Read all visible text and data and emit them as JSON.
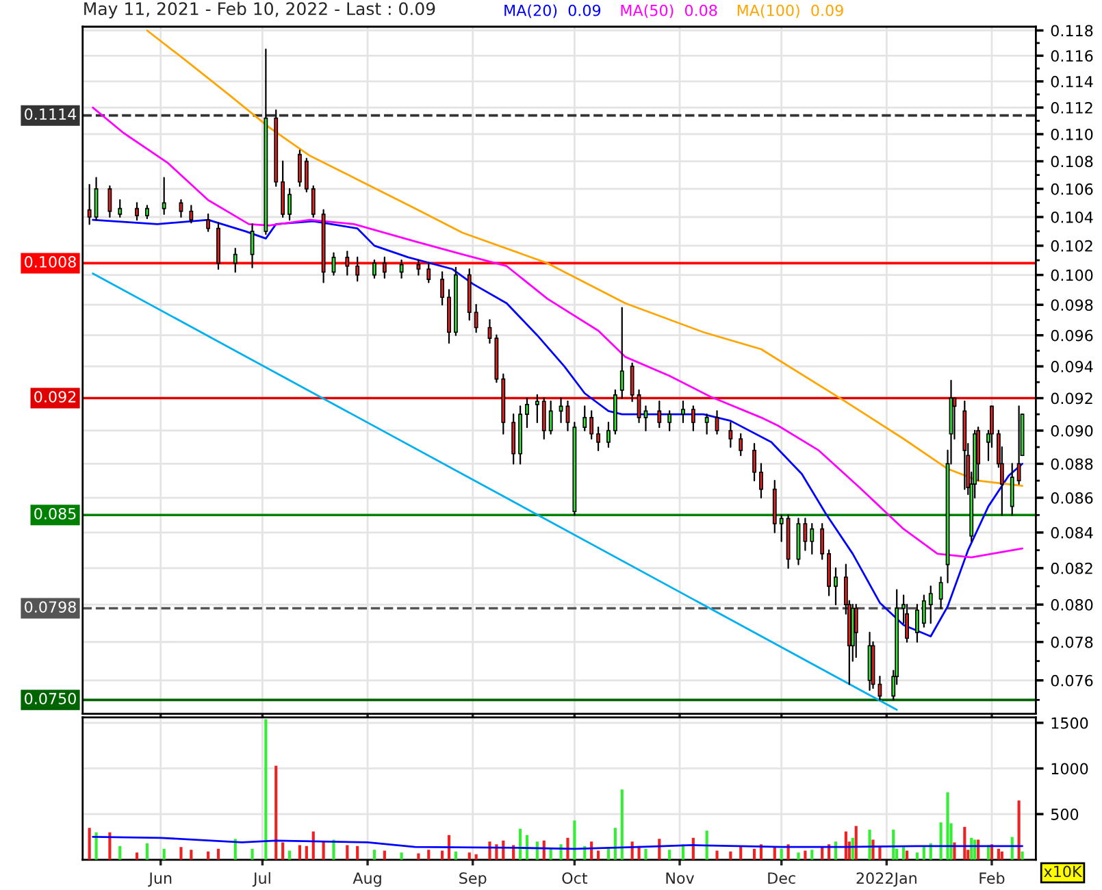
{
  "chart_data": [
    {
      "type": "candlestick",
      "title": "May 11, 2021 - Feb 10, 2022 - Last : 0.09",
      "log": "y",
      "grid": true,
      "legend": "top",
      "tick_labels": "y",
      "xlim": [
        "2021-05-09",
        "2022-02-14"
      ],
      "xticks": [
        {
          "value": "2021-06-01",
          "label": null
        },
        {
          "value": "2021-07-01",
          "label": null
        },
        {
          "value": "2021-08-01",
          "label": null
        },
        {
          "value": "2021-09-01",
          "label": null
        },
        {
          "value": "2021-10-01",
          "label": null
        },
        {
          "value": "2021-11-01",
          "label": null
        },
        {
          "value": "2021-12-01",
          "label": null
        },
        {
          "value": "2022-01-01",
          "label": null
        },
        {
          "value": "2022-02-01",
          "label": null
        }
      ],
      "ylim": [
        0.0743,
        0.1183
      ],
      "yticks": [
        {
          "value": 0.075,
          "label": null
        },
        0.076,
        {
          "value": 0.077,
          "label": null
        },
        0.078,
        {
          "value": 0.079,
          "label": null
        },
        {
          "value": 0.08,
          "label": "0.080"
        },
        {
          "value": 0.081,
          "label": null
        },
        0.082,
        {
          "value": 0.083,
          "label": null
        },
        0.084,
        {
          "value": 0.085,
          "label": null
        },
        0.086,
        {
          "value": 0.087,
          "label": null
        },
        0.088,
        {
          "value": 0.089,
          "label": null
        },
        {
          "value": 0.09,
          "label": "0.090"
        },
        {
          "value": 0.091,
          "label": null
        },
        0.092,
        {
          "value": 0.093,
          "label": null
        },
        0.094,
        {
          "value": 0.095,
          "label": null
        },
        0.096,
        {
          "value": 0.097,
          "label": null
        },
        0.098,
        {
          "value": 0.099,
          "label": null
        },
        {
          "value": 0.1,
          "label": "0.100"
        },
        {
          "value": 0.101,
          "label": null
        },
        0.102,
        {
          "value": 0.103,
          "label": null
        },
        0.104,
        {
          "value": 0.105,
          "label": null
        },
        0.106,
        {
          "value": 0.107,
          "label": null
        },
        0.108,
        {
          "value": 0.109,
          "label": null
        },
        {
          "value": 0.11,
          "label": "0.110"
        },
        {
          "value": 0.111,
          "label": null
        },
        0.112,
        {
          "value": 0.113,
          "label": null
        },
        0.114,
        {
          "value": 0.115,
          "label": null
        },
        0.116,
        {
          "value": 0.117,
          "label": null
        },
        0.118
      ],
      "ref_lines": [
        {
          "axis": "y",
          "value": 0.1114,
          "label": "0.1114",
          "color": "#333333",
          "line_style": "dashed"
        },
        {
          "axis": "y",
          "value": 0.1008,
          "label": "0.1008",
          "color": "#ff0000",
          "line_style": "solid"
        },
        {
          "axis": "y",
          "value": 0.092,
          "label": "0.092",
          "color": "#e00000",
          "line_style": "solid"
        },
        {
          "axis": "y",
          "value": 0.085,
          "label": "0.085",
          "color": "#008000",
          "line_style": "solid"
        },
        {
          "axis": "y",
          "value": 0.0798,
          "label": "0.0798",
          "color": "#555555",
          "line_style": "dashed"
        },
        {
          "axis": "y",
          "value": 0.075,
          "label": "0.0750",
          "color": "#006400",
          "line_style": "solid"
        }
      ],
      "series": [
        {
          "type": "line",
          "color": "#00b0f0",
          "x": [
            "2021-05-12",
            "2022-01-04"
          ],
          "values": [
            0.1001,
            0.0745
          ]
        },
        {
          "type": "line",
          "name": "MA(20)  0.09",
          "color": "#0000ff",
          "x": [
            "2021-05-12",
            "2021-05-31",
            "2021-06-15",
            "2021-06-26",
            "2021-07-02",
            "2021-07-05",
            "2021-07-16",
            "2021-07-29",
            "2021-08-03",
            "2021-08-13",
            "2021-08-26",
            "2021-09-01",
            "2021-09-11",
            "2021-09-20",
            "2021-09-28",
            "2021-10-04",
            "2021-10-11",
            "2021-10-15",
            "2021-10-20",
            "2021-11-08",
            "2021-11-16",
            "2021-11-28",
            "2021-12-07",
            "2021-12-14",
            "2021-12-22",
            "2021-12-30",
            "2022-01-06",
            "2022-01-14",
            "2022-01-19",
            "2022-01-25",
            "2022-01-31",
            "2022-02-06",
            "2022-02-10"
          ],
          "values": [
            0.1038,
            0.1035,
            0.1038,
            0.103,
            0.1025,
            0.1035,
            0.1037,
            0.1032,
            0.102,
            0.1012,
            0.1004,
            0.0994,
            0.0981,
            0.096,
            0.094,
            0.0923,
            0.0912,
            0.091,
            0.091,
            0.091,
            0.0906,
            0.0893,
            0.0874,
            0.0851,
            0.0828,
            0.0801,
            0.0789,
            0.0783,
            0.0799,
            0.083,
            0.0855,
            0.0873,
            0.088
          ]
        },
        {
          "type": "line",
          "name": "MA(50)  0.08",
          "color": "#ff00ff",
          "x": [
            "2021-05-12",
            "2021-05-21",
            "2021-06-03",
            "2021-06-15",
            "2021-06-27",
            "2021-07-03",
            "2021-07-15",
            "2021-07-28",
            "2021-08-15",
            "2021-08-29",
            "2021-09-11",
            "2021-09-23",
            "2021-10-08",
            "2021-10-16",
            "2021-10-29",
            "2021-11-10",
            "2021-11-25",
            "2021-11-30",
            "2021-12-12",
            "2021-12-24",
            "2022-01-06",
            "2022-01-16",
            "2022-01-26",
            "2022-02-10"
          ],
          "values": [
            0.112,
            0.1101,
            0.1079,
            0.1052,
            0.1035,
            0.1034,
            0.1038,
            0.1035,
            0.1023,
            0.1014,
            0.1006,
            0.0984,
            0.0963,
            0.0946,
            0.0934,
            0.0921,
            0.0908,
            0.0903,
            0.0888,
            0.0866,
            0.0842,
            0.0828,
            0.0826,
            0.0831
          ]
        },
        {
          "type": "line",
          "name": "MA(100)  0.09",
          "color": "#ffa500",
          "x": [
            "2021-05-28",
            "2021-06-09",
            "2021-06-21",
            "2021-07-03",
            "2021-07-15",
            "2021-07-28",
            "2021-08-15",
            "2021-08-29",
            "2021-09-23",
            "2021-10-16",
            "2021-11-08",
            "2021-11-25",
            "2021-12-19",
            "2022-01-06",
            "2022-01-19",
            "2022-01-28",
            "2022-02-10"
          ],
          "values": [
            0.118,
            0.1155,
            0.113,
            0.1105,
            0.1084,
            0.1068,
            0.1046,
            0.1029,
            0.1008,
            0.0981,
            0.0962,
            0.0951,
            0.0919,
            0.0895,
            0.0877,
            0.087,
            0.0867
          ]
        },
        {
          "type": "candlestick",
          "color": "#33ee33",
          "x": [
            "2021-05-13",
            "2021-05-20",
            "2021-05-28",
            "2021-06-02",
            "2021-06-23",
            "2021-06-28",
            "2021-07-02",
            "2021-07-09",
            "2021-07-22",
            "2021-08-03",
            "2021-08-11",
            "2021-08-27",
            "2021-09-15",
            "2021-09-17",
            "2021-09-20",
            "2021-09-24",
            "2021-09-27",
            "2021-10-01",
            "2021-10-04",
            "2021-10-11",
            "2021-10-13",
            "2021-10-15",
            "2021-10-22",
            "2021-10-29",
            "2021-11-02",
            "2021-11-09",
            "2021-12-01",
            "2021-12-06",
            "2021-12-10",
            "2021-12-17",
            "2021-12-22",
            "2021-12-27",
            "2022-01-03",
            "2022-01-04",
            "2022-01-06",
            "2022-01-10",
            "2022-01-12",
            "2022-01-14",
            "2022-01-17",
            "2022-01-19",
            "2022-01-20",
            "2022-01-26",
            "2022-01-27",
            "2022-01-31",
            "2022-02-07",
            "2022-02-10"
          ],
          "ohlc": [
            [
              0.104,
              0.1068,
              0.1038,
              0.106
            ],
            [
              0.1042,
              0.1052,
              0.104,
              0.1046
            ],
            [
              0.1041,
              0.1048,
              0.1039,
              0.1046
            ],
            [
              0.1046,
              0.1068,
              0.1042,
              0.105
            ],
            [
              0.1008,
              0.1018,
              0.1002,
              0.1014
            ],
            [
              0.1014,
              0.1035,
              0.1005,
              0.103
            ],
            [
              0.103,
              0.1165,
              0.1028,
              0.1112
            ],
            [
              0.1042,
              0.106,
              0.1038,
              0.1056
            ],
            [
              0.1002,
              0.1015,
              0.1,
              0.1012
            ],
            [
              0.1,
              0.101,
              0.0998,
              0.1008
            ],
            [
              0.1002,
              0.101,
              0.0998,
              0.1007
            ],
            [
              0.0962,
              0.1005,
              0.096,
              0.1
            ],
            [
              0.0886,
              0.0915,
              0.088,
              0.091
            ],
            [
              0.091,
              0.092,
              0.0902,
              0.0916
            ],
            [
              0.0916,
              0.0922,
              0.0905,
              0.0918
            ],
            [
              0.09,
              0.0918,
              0.0898,
              0.0912
            ],
            [
              0.0912,
              0.092,
              0.0905,
              0.0915
            ],
            [
              0.0852,
              0.0905,
              0.085,
              0.0902
            ],
            [
              0.0902,
              0.0915,
              0.09,
              0.0908
            ],
            [
              0.0893,
              0.0905,
              0.089,
              0.09
            ],
            [
              0.09,
              0.0925,
              0.0898,
              0.0922
            ],
            [
              0.0925,
              0.0978,
              0.092,
              0.0937
            ],
            [
              0.0908,
              0.0915,
              0.09,
              0.0912
            ],
            [
              0.0905,
              0.0912,
              0.09,
              0.091
            ],
            [
              0.091,
              0.0918,
              0.0905,
              0.0913
            ],
            [
              0.0905,
              0.091,
              0.0898,
              0.0908
            ],
            [
              0.0845,
              0.085,
              0.0835,
              0.0848
            ],
            [
              0.0825,
              0.0848,
              0.0822,
              0.0845
            ],
            [
              0.0835,
              0.0845,
              0.0828,
              0.0842
            ],
            [
              0.081,
              0.082,
              0.08,
              0.0815
            ],
            [
              0.0778,
              0.08,
              0.077,
              0.0798
            ],
            [
              0.076,
              0.0785,
              0.0755,
              0.0778
            ],
            [
              0.0752,
              0.0765,
              0.075,
              0.0762
            ],
            [
              0.0762,
              0.0808,
              0.0758,
              0.0798
            ],
            [
              0.0798,
              0.0805,
              0.079,
              0.08
            ],
            [
              0.0785,
              0.08,
              0.078,
              0.0797
            ],
            [
              0.079,
              0.0805,
              0.0788,
              0.0802
            ],
            [
              0.08,
              0.081,
              0.079,
              0.0806
            ],
            [
              0.0803,
              0.0815,
              0.0798,
              0.0812
            ],
            [
              0.0822,
              0.0888,
              0.0812,
              0.088
            ],
            [
              0.0898,
              0.0931,
              0.088,
              0.092
            ],
            [
              0.0838,
              0.0875,
              0.0835,
              0.0868
            ],
            [
              0.0868,
              0.09,
              0.086,
              0.0898
            ],
            [
              0.0893,
              0.09,
              0.0882,
              0.0898
            ],
            [
              0.0855,
              0.088,
              0.085,
              0.0872
            ],
            [
              0.0885,
              0.091,
              0.0885,
              0.091
            ]
          ]
        },
        {
          "type": "candlestick",
          "color": "#ee2222",
          "x": [
            "2021-05-11",
            "2021-05-17",
            "2021-05-25",
            "2021-06-07",
            "2021-06-10",
            "2021-06-15",
            "2021-06-18",
            "2021-07-05",
            "2021-07-07",
            "2021-07-12",
            "2021-07-14",
            "2021-07-16",
            "2021-07-19",
            "2021-07-26",
            "2021-07-29",
            "2021-08-06",
            "2021-08-16",
            "2021-08-19",
            "2021-08-23",
            "2021-08-25",
            "2021-08-31",
            "2021-09-02",
            "2021-09-06",
            "2021-09-08",
            "2021-09-10",
            "2021-09-13",
            "2021-09-22",
            "2021-09-29",
            "2021-10-06",
            "2021-10-08",
            "2021-10-18",
            "2021-10-20",
            "2021-10-26",
            "2021-11-05",
            "2021-11-12",
            "2021-11-16",
            "2021-11-19",
            "2021-11-23",
            "2021-11-25",
            "2021-11-29",
            "2021-12-03",
            "2021-12-08",
            "2021-12-13",
            "2021-12-15",
            "2021-12-20",
            "2021-12-21",
            "2021-12-23",
            "2021-12-28",
            "2021-12-30",
            "2022-01-07",
            "2022-01-21",
            "2022-01-24",
            "2022-01-25",
            "2022-01-28",
            "2022-02-01",
            "2022-02-03",
            "2022-02-04",
            "2022-02-09"
          ],
          "ohlc": [
            [
              0.1045,
              0.1063,
              0.1035,
              0.104
            ],
            [
              0.106,
              0.1062,
              0.104,
              0.1044
            ],
            [
              0.1046,
              0.105,
              0.1038,
              0.1041
            ],
            [
              0.105,
              0.1052,
              0.104,
              0.1044
            ],
            [
              0.1044,
              0.1048,
              0.1036,
              0.1038
            ],
            [
              0.1038,
              0.1042,
              0.103,
              0.1032
            ],
            [
              0.1032,
              0.1036,
              0.1004,
              0.1008
            ],
            [
              0.1112,
              0.1118,
              0.1062,
              0.1065
            ],
            [
              0.1065,
              0.108,
              0.104,
              0.1042
            ],
            [
              0.1085,
              0.1088,
              0.1062,
              0.1065
            ],
            [
              0.108,
              0.1082,
              0.1058,
              0.106
            ],
            [
              0.106,
              0.1062,
              0.104,
              0.1042
            ],
            [
              0.1042,
              0.1045,
              0.0995,
              0.1002
            ],
            [
              0.1012,
              0.1016,
              0.1,
              0.1006
            ],
            [
              0.1006,
              0.1012,
              0.0996,
              0.1
            ],
            [
              0.1008,
              0.1012,
              0.0998,
              0.1002
            ],
            [
              0.1007,
              0.101,
              0.1,
              0.1004
            ],
            [
              0.1004,
              0.1008,
              0.0995,
              0.0997
            ],
            [
              0.0997,
              0.1002,
              0.098,
              0.0985
            ],
            [
              0.0985,
              0.099,
              0.0955,
              0.0962
            ],
            [
              0.1,
              0.1004,
              0.097,
              0.0975
            ],
            [
              0.0975,
              0.098,
              0.0962,
              0.0965
            ],
            [
              0.0965,
              0.097,
              0.0955,
              0.0958
            ],
            [
              0.0958,
              0.096,
              0.093,
              0.0932
            ],
            [
              0.0932,
              0.0935,
              0.0898,
              0.0905
            ],
            [
              0.0905,
              0.091,
              0.088,
              0.0886
            ],
            [
              0.0918,
              0.092,
              0.0895,
              0.09
            ],
            [
              0.0915,
              0.0918,
              0.09,
              0.0905
            ],
            [
              0.0908,
              0.0912,
              0.0895,
              0.0898
            ],
            [
              0.0898,
              0.0902,
              0.0888,
              0.0893
            ],
            [
              0.094,
              0.0942,
              0.0918,
              0.0922
            ],
            [
              0.0922,
              0.0925,
              0.0905,
              0.0908
            ],
            [
              0.0912,
              0.0918,
              0.0902,
              0.0905
            ],
            [
              0.0913,
              0.0915,
              0.09,
              0.0905
            ],
            [
              0.0908,
              0.0912,
              0.0898,
              0.09
            ],
            [
              0.09,
              0.0905,
              0.089,
              0.0895
            ],
            [
              0.0895,
              0.0898,
              0.0885,
              0.0888
            ],
            [
              0.0888,
              0.0892,
              0.087,
              0.0875
            ],
            [
              0.0875,
              0.088,
              0.086,
              0.0865
            ],
            [
              0.0865,
              0.087,
              0.084,
              0.0845
            ],
            [
              0.0848,
              0.085,
              0.082,
              0.0825
            ],
            [
              0.0845,
              0.0848,
              0.083,
              0.0835
            ],
            [
              0.0842,
              0.0845,
              0.0825,
              0.0828
            ],
            [
              0.0828,
              0.083,
              0.0805,
              0.081
            ],
            [
              0.0815,
              0.0822,
              0.0795,
              0.08
            ],
            [
              0.08,
              0.0802,
              0.0758,
              0.0778
            ],
            [
              0.0798,
              0.08,
              0.0772,
              0.0785
            ],
            [
              0.0778,
              0.078,
              0.0756,
              0.0758
            ],
            [
              0.0758,
              0.0762,
              0.075,
              0.0752
            ],
            [
              0.0795,
              0.08,
              0.078,
              0.0782
            ],
            [
              0.092,
              0.092,
              0.0895,
              0.0915
            ],
            [
              0.0912,
              0.0918,
              0.0865,
              0.0888
            ],
            [
              0.0885,
              0.0892,
              0.0862,
              0.0866
            ],
            [
              0.09,
              0.0902,
              0.087,
              0.088
            ],
            [
              0.0915,
              0.0915,
              0.089,
              0.0898
            ],
            [
              0.0898,
              0.09,
              0.0878,
              0.088
            ],
            [
              0.088,
              0.089,
              0.085,
              0.0868
            ],
            [
              0.088,
              0.0915,
              0.0868,
              0.087
            ]
          ]
        }
      ]
    },
    {
      "type": "bar",
      "grid": true,
      "annotations": [
        "x10K"
      ],
      "xlim": [
        "2021-05-09",
        "2022-02-14"
      ],
      "xticks": [
        {
          "value": "2021-06-01",
          "label": "Jun"
        },
        {
          "value": "2021-07-01",
          "label": "Jul"
        },
        {
          "value": "2021-08-01",
          "label": "Aug"
        },
        {
          "value": "2021-09-01",
          "label": "Sep"
        },
        {
          "value": "2021-10-01",
          "label": "Oct"
        },
        {
          "value": "2021-11-01",
          "label": "Nov"
        },
        {
          "value": "2021-12-01",
          "label": "Dec"
        },
        {
          "value": "2022-01-01",
          "label": "2022Jan"
        },
        {
          "value": "2022-02-01",
          "label": "Feb"
        }
      ],
      "ylim": [
        0,
        1560
      ],
      "yticks": [
        500,
        1000,
        1500
      ],
      "series": [
        {
          "color": "#33ee33",
          "x": [
            "2021-05-13",
            "2021-05-20",
            "2021-05-28",
            "2021-06-02",
            "2021-06-23",
            "2021-06-28",
            "2021-07-02",
            "2021-07-09",
            "2021-07-22",
            "2021-08-03",
            "2021-08-11",
            "2021-08-27",
            "2021-09-15",
            "2021-09-17",
            "2021-09-20",
            "2021-09-24",
            "2021-09-27",
            "2021-10-01",
            "2021-10-04",
            "2021-10-11",
            "2021-10-13",
            "2021-10-15",
            "2021-10-22",
            "2021-10-29",
            "2021-11-02",
            "2021-11-09",
            "2021-12-01",
            "2021-12-06",
            "2021-12-10",
            "2021-12-17",
            "2021-12-22",
            "2021-12-27",
            "2022-01-03",
            "2022-01-04",
            "2022-01-06",
            "2022-01-10",
            "2022-01-12",
            "2022-01-14",
            "2022-01-17",
            "2022-01-19",
            "2022-01-20",
            "2022-01-26",
            "2022-01-27",
            "2022-01-31",
            "2022-02-07",
            "2022-02-10"
          ],
          "values": [
            300,
            150,
            180,
            120,
            230,
            120,
            1540,
            100,
            220,
            110,
            80,
            90,
            340,
            270,
            200,
            130,
            170,
            430,
            150,
            120,
            350,
            770,
            120,
            110,
            170,
            320,
            120,
            80,
            110,
            200,
            240,
            330,
            330,
            120,
            140,
            80,
            150,
            180,
            410,
            740,
            400,
            240,
            220,
            160,
            250,
            90
          ]
        },
        {
          "color": "#ee2222",
          "x": [
            "2021-05-11",
            "2021-05-17",
            "2021-05-25",
            "2021-06-07",
            "2021-06-10",
            "2021-06-15",
            "2021-06-18",
            "2021-07-05",
            "2021-07-07",
            "2021-07-12",
            "2021-07-14",
            "2021-07-16",
            "2021-07-19",
            "2021-07-26",
            "2021-07-29",
            "2021-08-06",
            "2021-08-16",
            "2021-08-19",
            "2021-08-23",
            "2021-08-25",
            "2021-08-31",
            "2021-09-02",
            "2021-09-06",
            "2021-09-08",
            "2021-09-10",
            "2021-09-13",
            "2021-09-22",
            "2021-09-29",
            "2021-10-06",
            "2021-10-08",
            "2021-10-18",
            "2021-10-20",
            "2021-10-26",
            "2021-11-05",
            "2021-11-12",
            "2021-11-16",
            "2021-11-19",
            "2021-11-23",
            "2021-11-25",
            "2021-11-29",
            "2021-12-03",
            "2021-12-08",
            "2021-12-13",
            "2021-12-15",
            "2021-12-20",
            "2021-12-21",
            "2021-12-23",
            "2021-12-28",
            "2021-12-30",
            "2022-01-07",
            "2022-01-21",
            "2022-01-24",
            "2022-01-25",
            "2022-01-28",
            "2022-02-01",
            "2022-02-03",
            "2022-02-04",
            "2022-02-09"
          ],
          "values": [
            350,
            300,
            80,
            140,
            110,
            90,
            120,
            1030,
            190,
            160,
            150,
            310,
            200,
            160,
            150,
            100,
            70,
            110,
            100,
            270,
            80,
            60,
            200,
            170,
            210,
            160,
            210,
            240,
            200,
            100,
            200,
            150,
            230,
            240,
            100,
            90,
            150,
            120,
            170,
            140,
            170,
            100,
            140,
            170,
            310,
            200,
            370,
            220,
            140,
            100,
            190,
            360,
            110,
            220,
            170,
            120,
            90,
            650
          ]
        },
        {
          "type": "line",
          "color": "#0000ff",
          "x": [
            "2021-05-12",
            "2021-06-01",
            "2021-06-25",
            "2021-07-05",
            "2021-08-01",
            "2021-08-15",
            "2021-09-15",
            "2021-10-01",
            "2021-10-20",
            "2021-11-05",
            "2021-12-01",
            "2021-12-20",
            "2022-01-10",
            "2022-02-10"
          ],
          "values": [
            250,
            240,
            190,
            210,
            190,
            140,
            130,
            120,
            140,
            160,
            140,
            140,
            150,
            150
          ]
        }
      ]
    }
  ]
}
